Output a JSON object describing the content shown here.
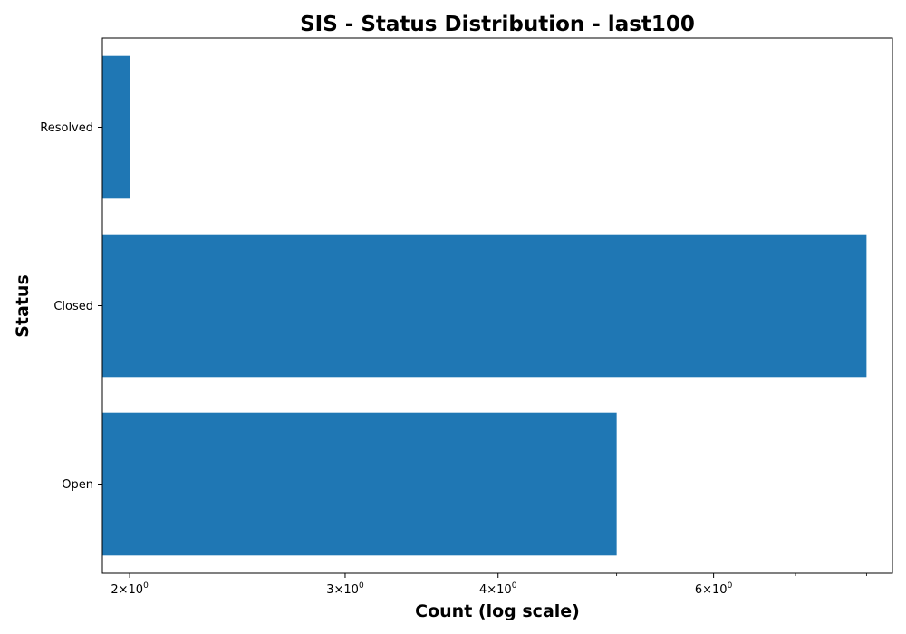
{
  "chart_data": {
    "type": "bar",
    "orientation": "horizontal",
    "title": "SIS - Status Distribution - last100",
    "xlabel": "Count (log scale)",
    "ylabel": "Status",
    "x_scale": "log",
    "xlim": [
      1.9,
      8.4
    ],
    "categories": [
      "Open",
      "Closed",
      "Resolved"
    ],
    "values": [
      5,
      8,
      2
    ],
    "bar_color": "#1f77b4",
    "x_major_ticks": [
      {
        "value": 2,
        "base": "2",
        "mult": "×",
        "ten": "10",
        "exp": "0"
      },
      {
        "value": 3,
        "base": "3",
        "mult": "×",
        "ten": "10",
        "exp": "0"
      },
      {
        "value": 4,
        "base": "4",
        "mult": "×",
        "ten": "10",
        "exp": "0"
      },
      {
        "value": 6,
        "base": "6",
        "mult": "×",
        "ten": "10",
        "exp": "0"
      }
    ],
    "x_minor_ticks": [
      5,
      7,
      8
    ],
    "grid": false,
    "legend": "none"
  }
}
